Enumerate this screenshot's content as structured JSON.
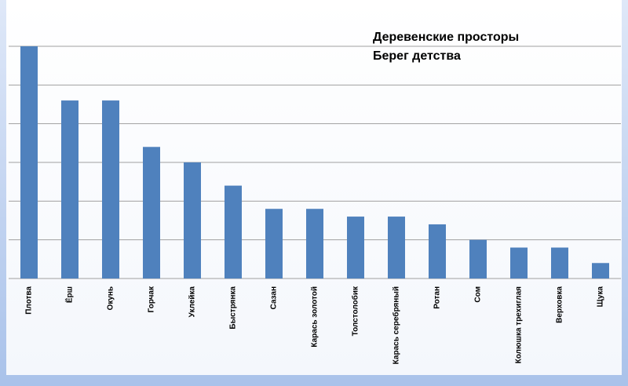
{
  "chart_data": {
    "type": "bar",
    "title": "Деревенские просторы",
    "subtitle": "Берег детства",
    "categories": [
      "Плотва",
      "Ёрш",
      "Окунь",
      "Горчак",
      "Уклейка",
      "Быстрянка",
      "Сазан",
      "Карась золотой",
      "Толстолобик",
      "Карась  серебряный",
      "Ротан",
      "Сом",
      "Колюшка трехиглая",
      "Верховка",
      "Щука"
    ],
    "values": [
      6,
      4.6,
      4.6,
      3.4,
      3,
      2.4,
      1.8,
      1.8,
      1.6,
      1.6,
      1.4,
      1,
      0.8,
      0.8,
      0.4
    ],
    "color": "#4f81bd",
    "ylim": [
      0,
      6
    ],
    "yticks": [
      0,
      1,
      2,
      3,
      4,
      5,
      6
    ],
    "grid": true
  }
}
